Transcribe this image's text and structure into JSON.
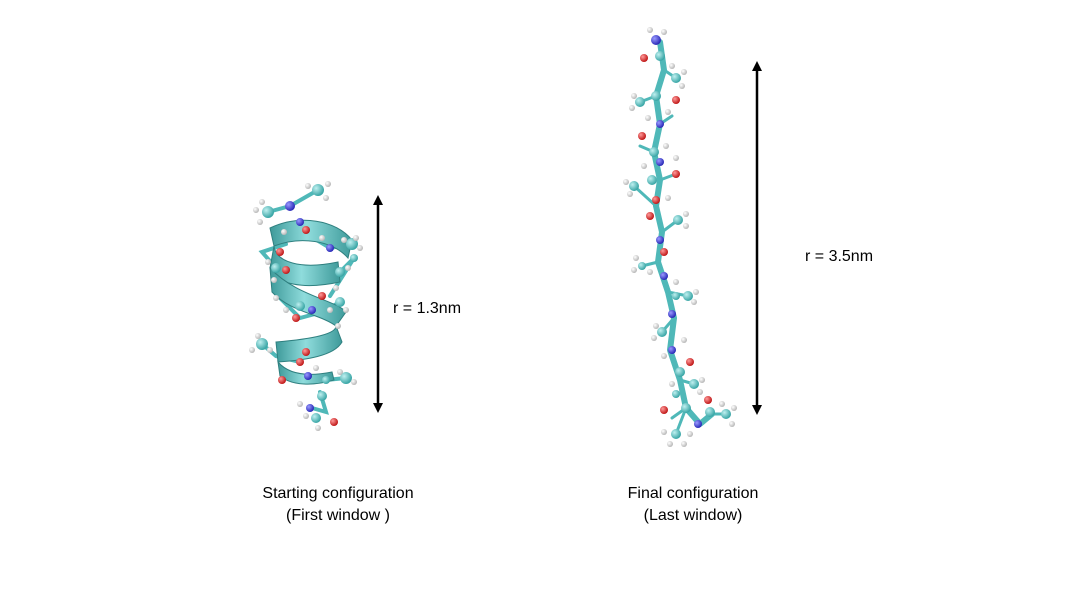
{
  "panels": [
    {
      "caption_line1": "Starting configuration",
      "caption_line2": "(First window )",
      "distance_label": "r = 1.3nm",
      "structure": "alpha-helix peptide"
    },
    {
      "caption_line1": "Final configuration",
      "caption_line2": "(Last window)",
      "distance_label": "r = 3.5nm",
      "structure": "extended peptide"
    }
  ],
  "colors": {
    "ribbon": "#5fc0c0",
    "carbon": "#4fb8b8",
    "oxygen": "#d92a2a",
    "nitrogen": "#3a3ad0",
    "hydrogen": "#e6e6e6",
    "arrow": "#000000"
  }
}
